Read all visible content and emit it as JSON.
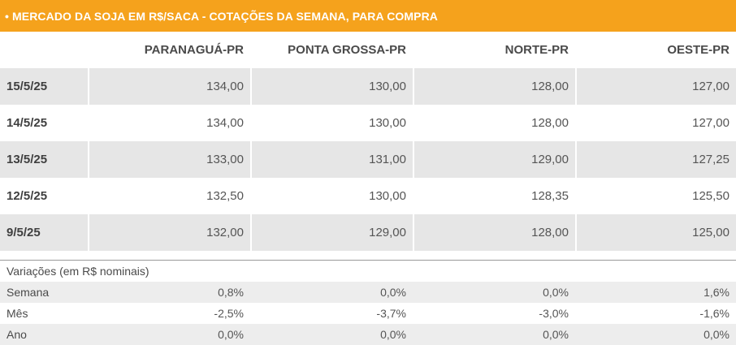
{
  "title": "• MERCADO DA SOJA EM R$/SACA - COTAÇÕES DA SEMANA, PARA COMPRA",
  "columns": [
    "PARANAGUÁ-PR",
    "PONTA GROSSA-PR",
    "NORTE-PR",
    "OESTE-PR"
  ],
  "rows": [
    {
      "date": "15/5/25",
      "values": [
        "134,00",
        "130,00",
        "128,00",
        "127,00"
      ]
    },
    {
      "date": "14/5/25",
      "values": [
        "134,00",
        "130,00",
        "128,00",
        "127,00"
      ]
    },
    {
      "date": "13/5/25",
      "values": [
        "133,00",
        "131,00",
        "129,00",
        "127,25"
      ]
    },
    {
      "date": "12/5/25",
      "values": [
        "132,50",
        "130,00",
        "128,35",
        "125,50"
      ]
    },
    {
      "date": "9/5/25",
      "values": [
        "132,00",
        "129,00",
        "128,00",
        "125,00"
      ]
    }
  ],
  "variations": {
    "title": "Variações (em R$ nominais)",
    "rows": [
      {
        "label": "Semana",
        "values": [
          "0,8%",
          "0,0%",
          "0,0%",
          "1,6%"
        ]
      },
      {
        "label": "Mês",
        "values": [
          "-2,5%",
          "-3,7%",
          "-3,0%",
          "-1,6%"
        ]
      },
      {
        "label": "Ano",
        "values": [
          "0,0%",
          "0,0%",
          "0,0%",
          "0,0%"
        ]
      }
    ]
  },
  "colors": {
    "title_bar": "#f5a21c",
    "row_shade": "#e6e6e6",
    "text": "#4a4a4a"
  }
}
